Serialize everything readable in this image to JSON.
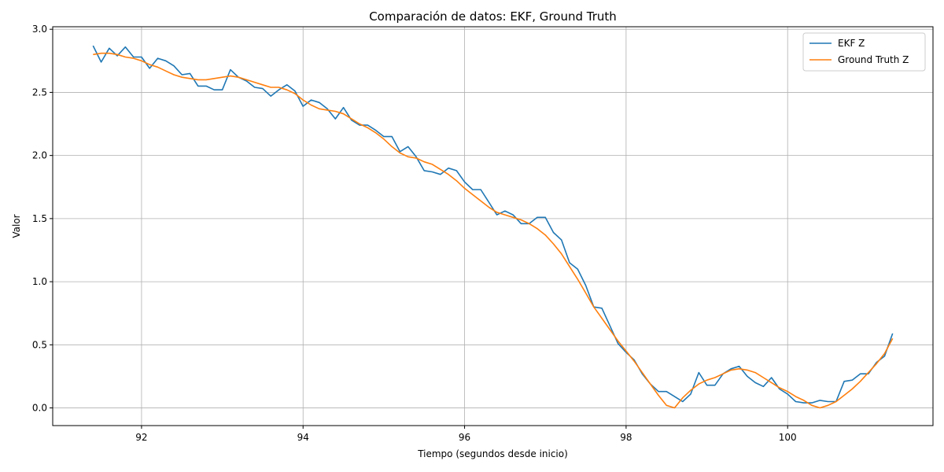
{
  "chart_data": {
    "type": "line",
    "title": "Comparación de datos: EKF, Ground Truth",
    "xlabel": "Tiempo (segundos desde inicio)",
    "ylabel": "Valor",
    "xlim": [
      90.9,
      101.8
    ],
    "ylim": [
      -0.14,
      3.02
    ],
    "xticks": [
      92,
      94,
      96,
      98,
      100
    ],
    "yticks": [
      0.0,
      0.5,
      1.0,
      1.5,
      2.0,
      2.5,
      3.0
    ],
    "xtick_labels": [
      "92",
      "94",
      "96",
      "98",
      "100"
    ],
    "ytick_labels": [
      "0.0",
      "0.5",
      "1.0",
      "1.5",
      "2.0",
      "2.5",
      "3.0"
    ],
    "grid": true,
    "legend_position": "top-right",
    "x": [
      91.4,
      91.5,
      91.6,
      91.7,
      91.8,
      91.9,
      92.0,
      92.1,
      92.2,
      92.3,
      92.4,
      92.5,
      92.6,
      92.7,
      92.8,
      92.9,
      93.0,
      93.1,
      93.2,
      93.3,
      93.4,
      93.5,
      93.6,
      93.7,
      93.8,
      93.9,
      94.0,
      94.1,
      94.2,
      94.3,
      94.4,
      94.5,
      94.6,
      94.7,
      94.8,
      94.9,
      95.0,
      95.1,
      95.2,
      95.3,
      95.4,
      95.5,
      95.6,
      95.7,
      95.8,
      95.9,
      96.0,
      96.1,
      96.2,
      96.3,
      96.4,
      96.5,
      96.6,
      96.7,
      96.8,
      96.9,
      97.0,
      97.1,
      97.2,
      97.3,
      97.4,
      97.5,
      97.6,
      97.7,
      97.8,
      97.9,
      98.0,
      98.1,
      98.2,
      98.3,
      98.4,
      98.5,
      98.6,
      98.7,
      98.8,
      98.9,
      99.0,
      99.1,
      99.2,
      99.3,
      99.4,
      99.5,
      99.6,
      99.7,
      99.8,
      99.9,
      100.0,
      100.1,
      100.2,
      100.3,
      100.4,
      100.5,
      100.6,
      100.7,
      100.8,
      100.9,
      101.0,
      101.1,
      101.2,
      101.3
    ],
    "series": [
      {
        "name": "EKF Z",
        "color": "#1f77b4",
        "values": [
          2.87,
          2.74,
          2.85,
          2.79,
          2.86,
          2.78,
          2.78,
          2.69,
          2.77,
          2.75,
          2.71,
          2.64,
          2.65,
          2.55,
          2.55,
          2.52,
          2.52,
          2.68,
          2.62,
          2.59,
          2.54,
          2.53,
          2.47,
          2.52,
          2.56,
          2.51,
          2.39,
          2.44,
          2.42,
          2.37,
          2.29,
          2.38,
          2.28,
          2.24,
          2.24,
          2.2,
          2.15,
          2.15,
          2.03,
          2.07,
          1.99,
          1.88,
          1.87,
          1.85,
          1.9,
          1.88,
          1.79,
          1.73,
          1.73,
          1.63,
          1.53,
          1.56,
          1.53,
          1.46,
          1.46,
          1.51,
          1.51,
          1.39,
          1.33,
          1.15,
          1.1,
          0.97,
          0.8,
          0.79,
          0.65,
          0.51,
          0.44,
          0.38,
          0.27,
          0.19,
          0.13,
          0.13,
          0.09,
          0.05,
          0.11,
          0.28,
          0.18,
          0.18,
          0.27,
          0.31,
          0.33,
          0.25,
          0.2,
          0.17,
          0.24,
          0.15,
          0.11,
          0.05,
          0.04,
          0.04,
          0.06,
          0.05,
          0.05,
          0.21,
          0.22,
          0.27,
          0.27,
          0.36,
          0.41,
          0.59
        ]
      },
      {
        "name": "Ground Truth Z",
        "color": "#ff7f0e",
        "values": [
          2.8,
          2.81,
          2.81,
          2.8,
          2.78,
          2.77,
          2.75,
          2.72,
          2.7,
          2.67,
          2.64,
          2.62,
          2.61,
          2.6,
          2.6,
          2.61,
          2.62,
          2.63,
          2.62,
          2.6,
          2.58,
          2.56,
          2.54,
          2.54,
          2.52,
          2.49,
          2.44,
          2.4,
          2.37,
          2.36,
          2.35,
          2.33,
          2.29,
          2.25,
          2.22,
          2.18,
          2.13,
          2.07,
          2.02,
          1.99,
          1.98,
          1.95,
          1.93,
          1.89,
          1.85,
          1.8,
          1.74,
          1.69,
          1.64,
          1.59,
          1.55,
          1.53,
          1.51,
          1.49,
          1.46,
          1.42,
          1.37,
          1.3,
          1.22,
          1.12,
          1.02,
          0.91,
          0.8,
          0.71,
          0.62,
          0.53,
          0.45,
          0.37,
          0.28,
          0.19,
          0.1,
          0.02,
          0.0,
          0.08,
          0.14,
          0.19,
          0.22,
          0.24,
          0.27,
          0.3,
          0.31,
          0.3,
          0.28,
          0.24,
          0.2,
          0.16,
          0.13,
          0.09,
          0.06,
          0.02,
          0.0,
          0.02,
          0.05,
          0.1,
          0.15,
          0.21,
          0.28,
          0.35,
          0.43,
          0.55
        ]
      }
    ]
  }
}
